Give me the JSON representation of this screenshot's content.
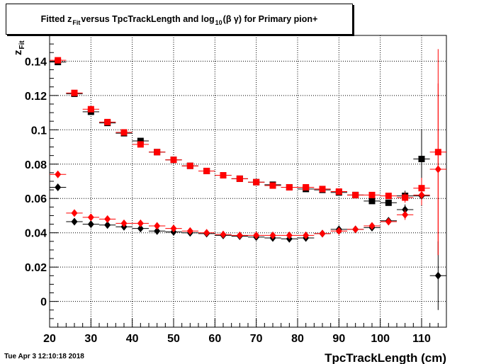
{
  "chart_title": {
    "part1": "Fitted  z",
    "sub1": "Fit",
    "part2": "  versus TpcTrackLength and log",
    "sub2": "10",
    "part3": " (β γ) for Primary pion+"
  },
  "timestamp": "Tue Apr  3 12:10:18 2018",
  "colors": {
    "black_series": "#000000",
    "red_series": "#ff0000",
    "grid": "#000000"
  },
  "chart_data": {
    "type": "scatter",
    "xlabel": "TpcTrackLength (cm)",
    "ylabel": "z",
    "ylabel_sub": "Fit",
    "xlim": [
      20,
      116
    ],
    "ylim": [
      -0.015,
      0.155
    ],
    "x_ticks": [
      20,
      30,
      40,
      50,
      60,
      70,
      80,
      90,
      100,
      110
    ],
    "y_ticks": [
      0,
      0.02,
      0.04,
      0.06,
      0.08,
      0.1,
      0.12,
      0.14
    ],
    "y_tick_labels": [
      "0",
      "0.02",
      "0.04",
      "0.06",
      "0.08",
      "0.1",
      "0.12",
      "0.14"
    ],
    "grid": true,
    "x_half_width": 2,
    "series": [
      {
        "marker": "square",
        "color": "#000000",
        "points": [
          [
            22,
            0.1395,
            0.001
          ],
          [
            26,
            0.121,
            0.0008
          ],
          [
            30,
            0.1105,
            0.0008
          ],
          [
            34,
            0.104,
            0.0007
          ],
          [
            38,
            0.098,
            0.0006
          ],
          [
            42,
            0.0935,
            0.0006
          ],
          [
            46,
            0.087,
            0.0005
          ],
          [
            50,
            0.0825,
            0.0005
          ],
          [
            54,
            0.079,
            0.0005
          ],
          [
            58,
            0.076,
            0.0005
          ],
          [
            62,
            0.0735,
            0.0005
          ],
          [
            66,
            0.0715,
            0.0005
          ],
          [
            70,
            0.0695,
            0.0005
          ],
          [
            74,
            0.068,
            0.0006
          ],
          [
            78,
            0.0665,
            0.0006
          ],
          [
            82,
            0.0655,
            0.0006
          ],
          [
            86,
            0.065,
            0.0007
          ],
          [
            90,
            0.0635,
            0.0008
          ],
          [
            94,
            0.062,
            0.0009
          ],
          [
            98,
            0.0585,
            0.0012
          ],
          [
            102,
            0.0575,
            0.0015
          ],
          [
            106,
            0.0615,
            0.003
          ],
          [
            110,
            0.083,
            0.017
          ]
        ]
      },
      {
        "marker": "square",
        "color": "#ff0000",
        "points": [
          [
            22,
            0.1405,
            0.001
          ],
          [
            26,
            0.1215,
            0.0008
          ],
          [
            30,
            0.112,
            0.0008
          ],
          [
            34,
            0.1045,
            0.0007
          ],
          [
            38,
            0.0985,
            0.0006
          ],
          [
            42,
            0.0915,
            0.0006
          ],
          [
            46,
            0.087,
            0.0005
          ],
          [
            50,
            0.0825,
            0.0005
          ],
          [
            54,
            0.079,
            0.0005
          ],
          [
            58,
            0.076,
            0.0005
          ],
          [
            62,
            0.0735,
            0.0005
          ],
          [
            66,
            0.0715,
            0.0005
          ],
          [
            70,
            0.0695,
            0.0005
          ],
          [
            74,
            0.0675,
            0.0006
          ],
          [
            78,
            0.0665,
            0.0006
          ],
          [
            82,
            0.0665,
            0.0006
          ],
          [
            86,
            0.0655,
            0.0007
          ],
          [
            90,
            0.064,
            0.0008
          ],
          [
            94,
            0.062,
            0.0009
          ],
          [
            98,
            0.062,
            0.0012
          ],
          [
            102,
            0.0615,
            0.0015
          ],
          [
            106,
            0.0605,
            0.003
          ],
          [
            110,
            0.066,
            0.006
          ],
          [
            114,
            0.087,
            0.06
          ]
        ]
      },
      {
        "marker": "diamond",
        "color": "#000000",
        "points": [
          [
            22,
            0.0665,
            0.001
          ],
          [
            26,
            0.0465,
            0.0006
          ],
          [
            30,
            0.045,
            0.0005
          ],
          [
            34,
            0.0445,
            0.0005
          ],
          [
            38,
            0.0435,
            0.0005
          ],
          [
            42,
            0.0425,
            0.0005
          ],
          [
            46,
            0.041,
            0.0005
          ],
          [
            50,
            0.0405,
            0.0005
          ],
          [
            54,
            0.04,
            0.0005
          ],
          [
            58,
            0.0395,
            0.0005
          ],
          [
            62,
            0.0385,
            0.0005
          ],
          [
            66,
            0.038,
            0.0005
          ],
          [
            70,
            0.0375,
            0.0005
          ],
          [
            74,
            0.037,
            0.0005
          ],
          [
            78,
            0.0365,
            0.0005
          ],
          [
            82,
            0.037,
            0.0006
          ],
          [
            86,
            0.0395,
            0.0006
          ],
          [
            90,
            0.042,
            0.0007
          ],
          [
            94,
            0.042,
            0.0008
          ],
          [
            98,
            0.043,
            0.001
          ],
          [
            102,
            0.047,
            0.0015
          ],
          [
            106,
            0.0535,
            0.003
          ],
          [
            110,
            0.0615,
            0.006
          ],
          [
            114,
            0.015,
            0.02
          ]
        ]
      },
      {
        "marker": "diamond",
        "color": "#ff0000",
        "points": [
          [
            22,
            0.074,
            0.001
          ],
          [
            26,
            0.0515,
            0.0006
          ],
          [
            30,
            0.049,
            0.0005
          ],
          [
            34,
            0.048,
            0.0005
          ],
          [
            38,
            0.0455,
            0.0005
          ],
          [
            42,
            0.0455,
            0.0005
          ],
          [
            46,
            0.044,
            0.0005
          ],
          [
            50,
            0.0425,
            0.0005
          ],
          [
            54,
            0.041,
            0.0005
          ],
          [
            58,
            0.04,
            0.0005
          ],
          [
            62,
            0.039,
            0.0005
          ],
          [
            66,
            0.0385,
            0.0005
          ],
          [
            70,
            0.0385,
            0.0005
          ],
          [
            74,
            0.0385,
            0.0005
          ],
          [
            78,
            0.0385,
            0.0005
          ],
          [
            82,
            0.0385,
            0.0006
          ],
          [
            86,
            0.0395,
            0.0006
          ],
          [
            90,
            0.041,
            0.0007
          ],
          [
            94,
            0.042,
            0.0008
          ],
          [
            98,
            0.044,
            0.001
          ],
          [
            102,
            0.0465,
            0.0015
          ],
          [
            106,
            0.0505,
            0.003
          ],
          [
            110,
            0.062,
            0.006
          ],
          [
            114,
            0.077,
            0.05
          ]
        ]
      }
    ]
  }
}
